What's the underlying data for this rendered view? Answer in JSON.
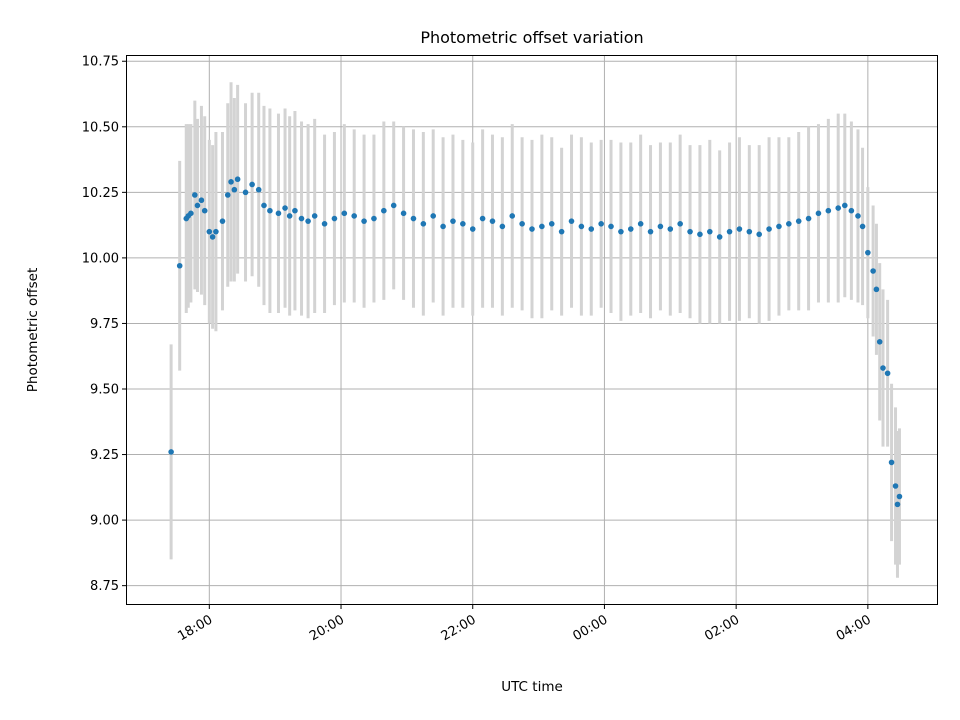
{
  "chart_data": {
    "type": "scatter",
    "title": "Photometric offset variation",
    "xlabel": "UTC time",
    "ylabel": "Photometric offset",
    "grid": true,
    "x_unit": "hours since 17:00 UTC",
    "xlim": [
      -0.25,
      12.05
    ],
    "ylim": [
      8.68,
      10.77
    ],
    "x_ticks": [
      {
        "value": 1.0,
        "label": "18:00"
      },
      {
        "value": 3.0,
        "label": "20:00"
      },
      {
        "value": 5.0,
        "label": "22:00"
      },
      {
        "value": 7.0,
        "label": "00:00"
      },
      {
        "value": 9.0,
        "label": "02:00"
      },
      {
        "value": 11.0,
        "label": "04:00"
      }
    ],
    "y_ticks": [
      {
        "value": 8.75,
        "label": "8.75"
      },
      {
        "value": 9.0,
        "label": "9.00"
      },
      {
        "value": 9.25,
        "label": "9.25"
      },
      {
        "value": 9.5,
        "label": "9.50"
      },
      {
        "value": 9.75,
        "label": "9.75"
      },
      {
        "value": 10.0,
        "label": "10.00"
      },
      {
        "value": 10.25,
        "label": "10.25"
      },
      {
        "value": 10.5,
        "label": "10.50"
      },
      {
        "value": 10.75,
        "label": "10.75"
      }
    ],
    "colors": {
      "points": "#1f77b4",
      "error_bars": "#d3d3d3",
      "grid": "#b0b0b0"
    },
    "series": [
      {
        "name": "Photometric offset",
        "x": [
          0.42,
          0.55,
          0.65,
          0.68,
          0.72,
          0.78,
          0.82,
          0.88,
          0.93,
          1.0,
          1.05,
          1.1,
          1.2,
          1.28,
          1.33,
          1.38,
          1.43,
          1.55,
          1.65,
          1.75,
          1.83,
          1.92,
          2.05,
          2.15,
          2.22,
          2.3,
          2.4,
          2.5,
          2.6,
          2.75,
          2.9,
          3.05,
          3.2,
          3.35,
          3.5,
          3.65,
          3.8,
          3.95,
          4.1,
          4.25,
          4.4,
          4.55,
          4.7,
          4.85,
          5.0,
          5.15,
          5.3,
          5.45,
          5.6,
          5.75,
          5.9,
          6.05,
          6.2,
          6.35,
          6.5,
          6.65,
          6.8,
          6.95,
          7.1,
          7.25,
          7.4,
          7.55,
          7.7,
          7.85,
          8.0,
          8.15,
          8.3,
          8.45,
          8.6,
          8.75,
          8.9,
          9.05,
          9.2,
          9.35,
          9.5,
          9.65,
          9.8,
          9.95,
          10.1,
          10.25,
          10.4,
          10.55,
          10.65,
          10.75,
          10.85,
          10.92,
          11.0,
          11.08,
          11.13,
          11.18,
          11.23,
          11.3,
          11.36,
          11.42,
          11.45,
          11.48
        ],
        "y": [
          9.26,
          9.97,
          10.15,
          10.16,
          10.17,
          10.24,
          10.2,
          10.22,
          10.18,
          10.1,
          10.08,
          10.1,
          10.14,
          10.24,
          10.29,
          10.26,
          10.3,
          10.25,
          10.28,
          10.26,
          10.2,
          10.18,
          10.17,
          10.19,
          10.16,
          10.18,
          10.15,
          10.14,
          10.16,
          10.13,
          10.15,
          10.17,
          10.16,
          10.14,
          10.15,
          10.18,
          10.2,
          10.17,
          10.15,
          10.13,
          10.16,
          10.12,
          10.14,
          10.13,
          10.11,
          10.15,
          10.14,
          10.12,
          10.16,
          10.13,
          10.11,
          10.12,
          10.13,
          10.1,
          10.14,
          10.12,
          10.11,
          10.13,
          10.12,
          10.1,
          10.11,
          10.13,
          10.1,
          10.12,
          10.11,
          10.13,
          10.1,
          10.09,
          10.1,
          10.08,
          10.1,
          10.11,
          10.1,
          10.09,
          10.11,
          10.12,
          10.13,
          10.14,
          10.15,
          10.17,
          10.18,
          10.19,
          10.2,
          10.18,
          10.16,
          10.12,
          10.02,
          9.95,
          9.88,
          9.68,
          9.58,
          9.56,
          9.22,
          9.13,
          9.06,
          9.09
        ],
        "yerr": [
          0.41,
          0.4,
          0.36,
          0.35,
          0.34,
          0.36,
          0.33,
          0.36,
          0.36,
          0.35,
          0.35,
          0.38,
          0.34,
          0.35,
          0.38,
          0.35,
          0.36,
          0.34,
          0.35,
          0.37,
          0.38,
          0.39,
          0.38,
          0.38,
          0.38,
          0.38,
          0.37,
          0.37,
          0.37,
          0.34,
          0.33,
          0.34,
          0.33,
          0.33,
          0.32,
          0.34,
          0.32,
          0.33,
          0.34,
          0.35,
          0.33,
          0.34,
          0.33,
          0.32,
          0.33,
          0.34,
          0.33,
          0.34,
          0.35,
          0.33,
          0.34,
          0.35,
          0.33,
          0.32,
          0.33,
          0.34,
          0.33,
          0.32,
          0.33,
          0.34,
          0.33,
          0.34,
          0.33,
          0.32,
          0.33,
          0.34,
          0.33,
          0.34,
          0.35,
          0.33,
          0.34,
          0.35,
          0.33,
          0.34,
          0.35,
          0.34,
          0.33,
          0.34,
          0.35,
          0.34,
          0.35,
          0.36,
          0.35,
          0.34,
          0.33,
          0.3,
          0.25,
          0.25,
          0.25,
          0.3,
          0.3,
          0.28,
          0.3,
          0.3,
          0.28,
          0.26
        ]
      }
    ]
  }
}
